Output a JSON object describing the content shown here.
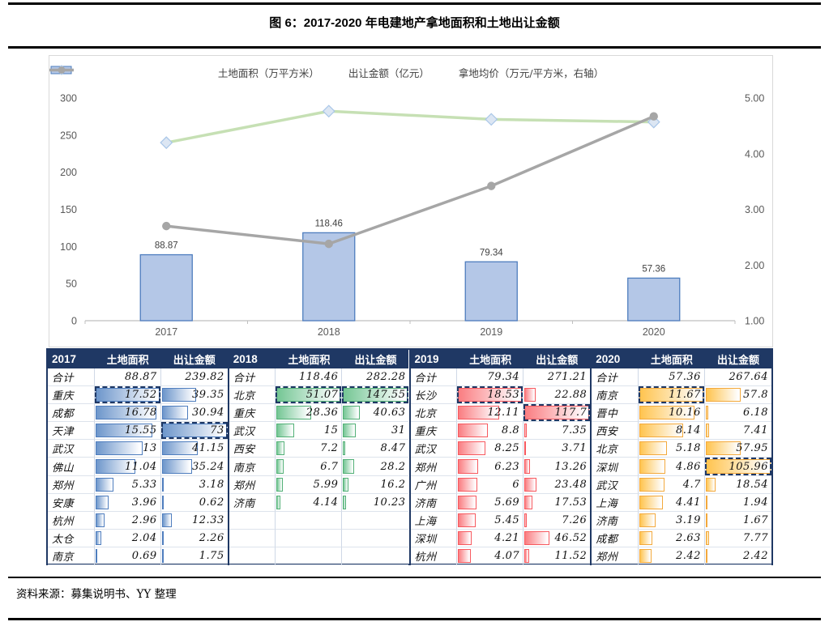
{
  "title": "图 6：2017-2020 年电建地产拿地面积和土地出让金额",
  "source": "资料来源：募集说明书、YY 整理",
  "colors": {
    "header_bg": "#1F3864",
    "dash_border": "#1F3864",
    "bar_fill": "#B4C7E7",
    "bar_stroke": "#4E7DBE",
    "green_line": "#C6E0B4",
    "diamond_fill": "#DCE6F3",
    "diamond_stroke": "#A9C6E8",
    "gray_line": "#A6A6A6",
    "axis_line": "#BFBFBF",
    "tick_text": "#595959",
    "palettes": {
      "blue": {
        "start": "#6D96CB",
        "border": "#4E7DBE"
      },
      "green": {
        "start": "#74C694",
        "border": "#52B077"
      },
      "red": {
        "start": "#FA7D81",
        "border": "#F7595F"
      },
      "gold": {
        "start": "#FFC44F",
        "border": "#F3A93C"
      }
    }
  },
  "chart_data": {
    "type": "bar",
    "subtype": "combo-bar-line",
    "categories": [
      "2017",
      "2018",
      "2019",
      "2020"
    ],
    "series": [
      {
        "name": "土地面积（万平方米）",
        "type": "bar",
        "axis": "left",
        "values": [
          88.87,
          118.46,
          79.34,
          57.36
        ],
        "labels": [
          "88.87",
          "118.46",
          "79.34",
          "57.36"
        ]
      },
      {
        "name": "出让金额（亿元）",
        "type": "line",
        "marker": "diamond",
        "axis": "left",
        "values": [
          239.82,
          282.28,
          271.21,
          267.64
        ]
      },
      {
        "name": "拿地均价（万元/平方米，右轴）",
        "type": "line",
        "marker": "circle",
        "axis": "right",
        "values": [
          2.7,
          2.38,
          3.42,
          4.67
        ]
      }
    ],
    "left_axis": {
      "min": 0,
      "max": 300,
      "step": 50,
      "ticks": [
        "0",
        "50",
        "100",
        "150",
        "200",
        "250",
        "300"
      ]
    },
    "right_axis": {
      "min": 1,
      "max": 5,
      "step": 1,
      "ticks": [
        "1.00",
        "2.00",
        "3.00",
        "4.00",
        "5.00"
      ]
    },
    "legend_position": "top",
    "gridlines": false
  },
  "table": {
    "col_headers": [
      "土地面积",
      "出让金额"
    ],
    "groups": [
      {
        "year": "2017",
        "palette": "blue",
        "rows": [
          {
            "city": "合计",
            "area": "88.87",
            "amount": "239.82",
            "total": true
          },
          {
            "city": "重庆",
            "area": "17.52",
            "amount": "39.35",
            "dash": "area"
          },
          {
            "city": "成都",
            "area": "16.78",
            "amount": "30.94"
          },
          {
            "city": "天津",
            "area": "15.55",
            "amount": "73",
            "dash": "amount"
          },
          {
            "city": "武汉",
            "area": "13",
            "amount": "41.15"
          },
          {
            "city": "佛山",
            "area": "11.04",
            "amount": "35.24"
          },
          {
            "city": "郑州",
            "area": "5.33",
            "amount": "3.18"
          },
          {
            "city": "安康",
            "area": "3.96",
            "amount": "0.62"
          },
          {
            "city": "杭州",
            "area": "2.96",
            "amount": "12.33"
          },
          {
            "city": "太仓",
            "area": "2.04",
            "amount": "2.26"
          },
          {
            "city": "南京",
            "area": "0.69",
            "amount": "1.75"
          }
        ]
      },
      {
        "year": "2018",
        "palette": "green",
        "rows": [
          {
            "city": "合计",
            "area": "118.46",
            "amount": "282.28",
            "total": true
          },
          {
            "city": "北京",
            "area": "51.07",
            "amount": "147.55",
            "dash": "both"
          },
          {
            "city": "重庆",
            "area": "28.36",
            "amount": "40.63"
          },
          {
            "city": "武汉",
            "area": "15",
            "amount": "31"
          },
          {
            "city": "西安",
            "area": "7.2",
            "amount": "8.47"
          },
          {
            "city": "南京",
            "area": "6.7",
            "amount": "28.2"
          },
          {
            "city": "郑州",
            "area": "5.99",
            "amount": "16.2"
          },
          {
            "city": "济南",
            "area": "4.14",
            "amount": "10.23"
          },
          {
            "city": "",
            "area": "",
            "amount": ""
          },
          {
            "city": "",
            "area": "",
            "amount": ""
          },
          {
            "city": "",
            "area": "",
            "amount": ""
          }
        ]
      },
      {
        "year": "2019",
        "palette": "red",
        "rows": [
          {
            "city": "合计",
            "area": "79.34",
            "amount": "271.21",
            "total": true
          },
          {
            "city": "长沙",
            "area": "18.53",
            "amount": "22.88",
            "dash": "area"
          },
          {
            "city": "北京",
            "area": "12.11",
            "amount": "117.7",
            "dash": "amount"
          },
          {
            "city": "重庆",
            "area": "8.8",
            "amount": "7.35"
          },
          {
            "city": "武汉",
            "area": "8.25",
            "amount": "3.71"
          },
          {
            "city": "郑州",
            "area": "6.23",
            "amount": "13.26"
          },
          {
            "city": "广州",
            "area": "6",
            "amount": "23.48"
          },
          {
            "city": "济南",
            "area": "5.69",
            "amount": "17.53"
          },
          {
            "city": "上海",
            "area": "5.45",
            "amount": "7.26"
          },
          {
            "city": "深圳",
            "area": "4.21",
            "amount": "46.52"
          },
          {
            "city": "杭州",
            "area": "4.07",
            "amount": "11.52"
          }
        ]
      },
      {
        "year": "2020",
        "palette": "gold",
        "rows": [
          {
            "city": "合计",
            "area": "57.36",
            "amount": "267.64",
            "total": true
          },
          {
            "city": "南京",
            "area": "11.67",
            "amount": "57.8",
            "dash": "area"
          },
          {
            "city": "晋中",
            "area": "10.16",
            "amount": "6.18"
          },
          {
            "city": "西安",
            "area": "8.14",
            "amount": "7.41"
          },
          {
            "city": "北京",
            "area": "5.18",
            "amount": "57.95"
          },
          {
            "city": "深圳",
            "area": "4.86",
            "amount": "105.96",
            "dash": "amount"
          },
          {
            "city": "武汉",
            "area": "4.7",
            "amount": "18.54"
          },
          {
            "city": "上海",
            "area": "4.41",
            "amount": "1.94"
          },
          {
            "city": "济南",
            "area": "3.19",
            "amount": "1.67"
          },
          {
            "city": "成都",
            "area": "2.63",
            "amount": "7.77"
          },
          {
            "city": "郑州",
            "area": "2.42",
            "amount": "2.42"
          }
        ]
      }
    ]
  }
}
